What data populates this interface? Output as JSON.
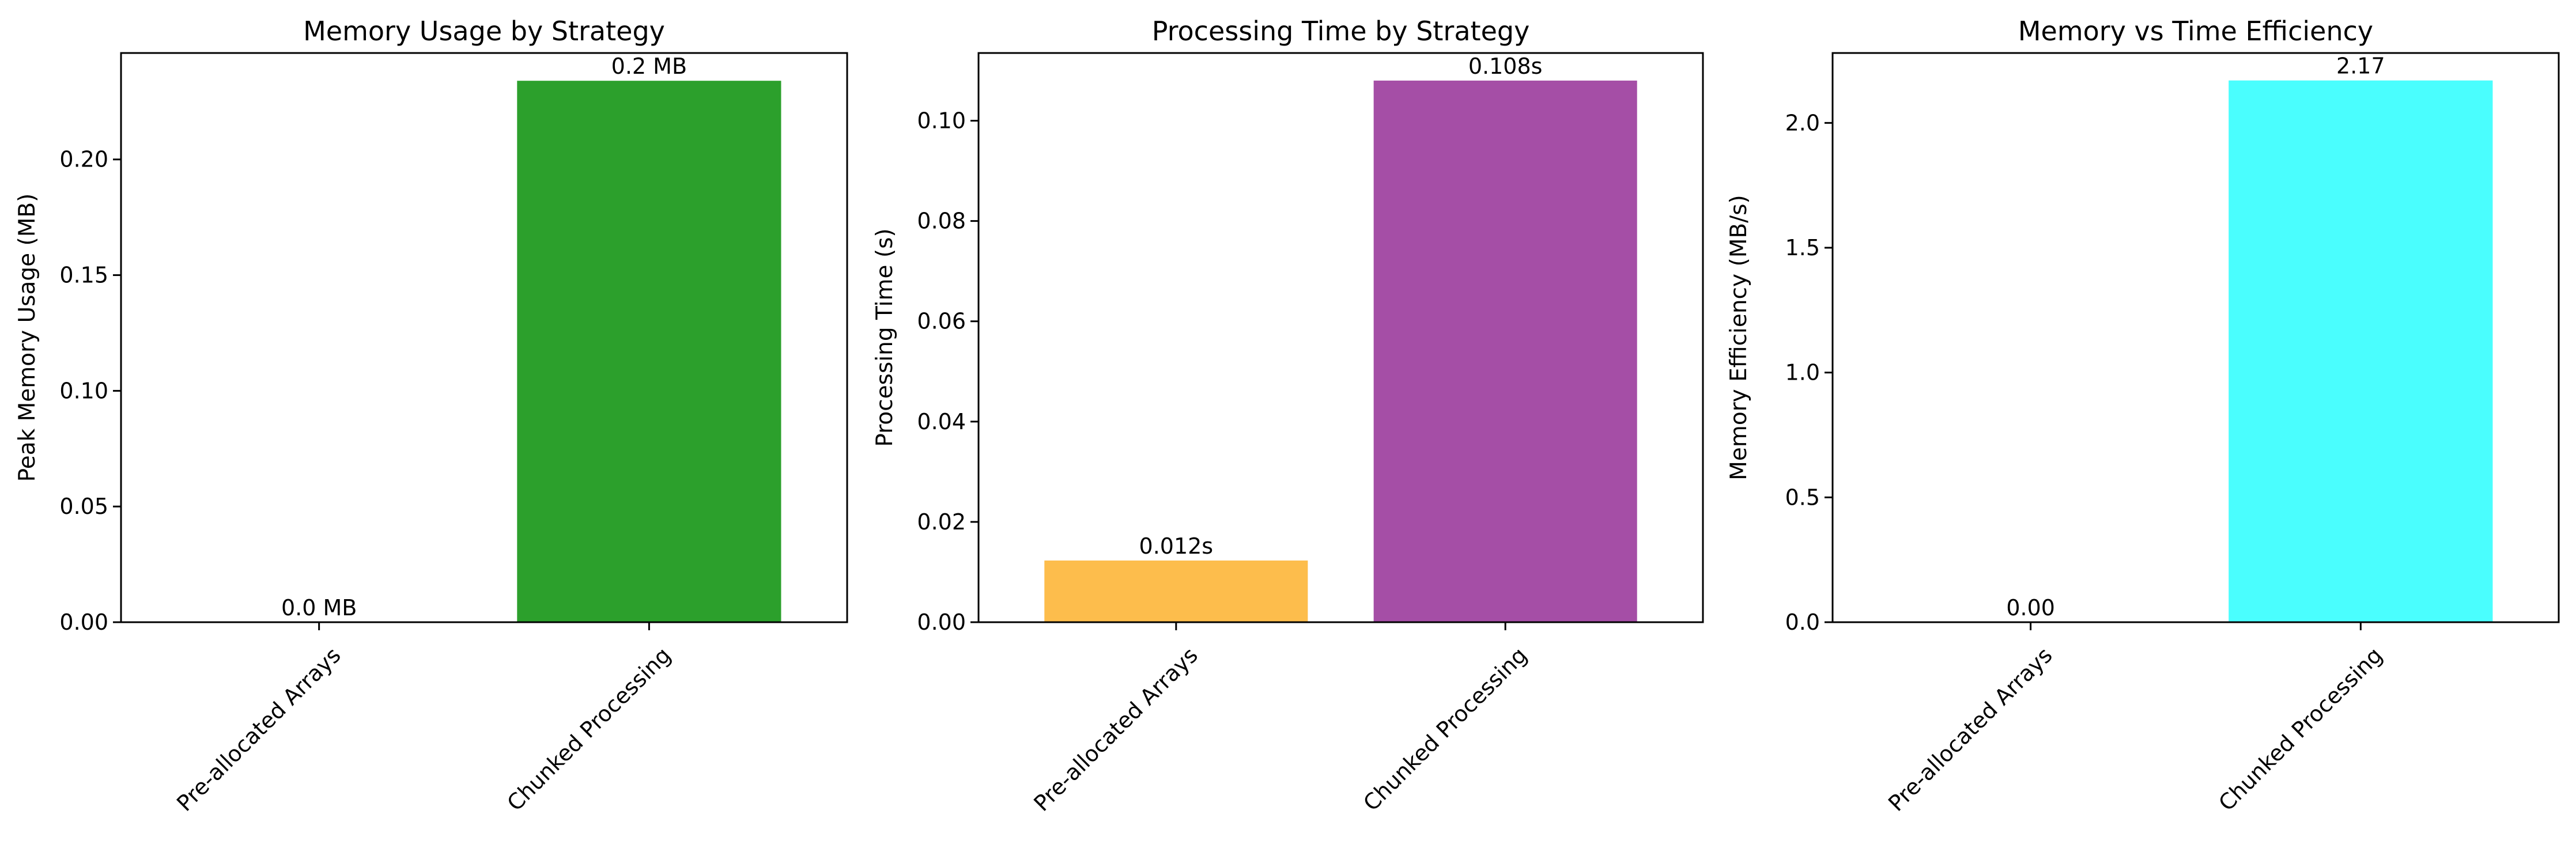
{
  "chart_data": [
    {
      "type": "bar",
      "title": "Memory Usage by Strategy",
      "xlabel": "",
      "ylabel": "Peak Memory Usage (MB)",
      "categories": [
        "Pre-allocated Arrays",
        "Chunked Processing"
      ],
      "values": [
        0.0,
        0.234
      ],
      "value_labels": [
        "0.0 MB",
        "0.2 MB"
      ],
      "colors": [
        "#2ca02c",
        "#2ca02c"
      ],
      "ylim": [
        0,
        0.246
      ],
      "yticks": [
        0.0,
        0.05,
        0.1,
        0.15,
        0.2
      ],
      "ytick_labels": [
        "0.00",
        "0.05",
        "0.10",
        "0.15",
        "0.20"
      ],
      "grid": false
    },
    {
      "type": "bar",
      "title": "Processing Time by Strategy",
      "xlabel": "",
      "ylabel": "Processing Time (s)",
      "categories": [
        "Pre-allocated Arrays",
        "Chunked Processing"
      ],
      "values": [
        0.0123,
        0.108
      ],
      "value_labels": [
        "0.012s",
        "0.108s"
      ],
      "colors": [
        "#fdbd4c",
        "#a54ea6"
      ],
      "ylim": [
        0,
        0.1135
      ],
      "yticks": [
        0.0,
        0.02,
        0.04,
        0.06,
        0.08,
        0.1
      ],
      "ytick_labels": [
        "0.00",
        "0.02",
        "0.04",
        "0.06",
        "0.08",
        "0.10"
      ],
      "grid": false
    },
    {
      "type": "bar",
      "title": "Memory vs Time Efficiency",
      "xlabel": "",
      "ylabel": "Memory Efficiency (MB/s)",
      "categories": [
        "Pre-allocated Arrays",
        "Chunked Processing"
      ],
      "values": [
        0.0,
        2.17
      ],
      "value_labels": [
        "0.00",
        "2.17"
      ],
      "colors": [
        "#4afefe",
        "#4afefe"
      ],
      "ylim": [
        0,
        2.28
      ],
      "yticks": [
        0.0,
        0.5,
        1.0,
        1.5,
        2.0
      ],
      "ytick_labels": [
        "0.0",
        "0.5",
        "1.0",
        "1.5",
        "2.0"
      ],
      "grid": false
    }
  ]
}
